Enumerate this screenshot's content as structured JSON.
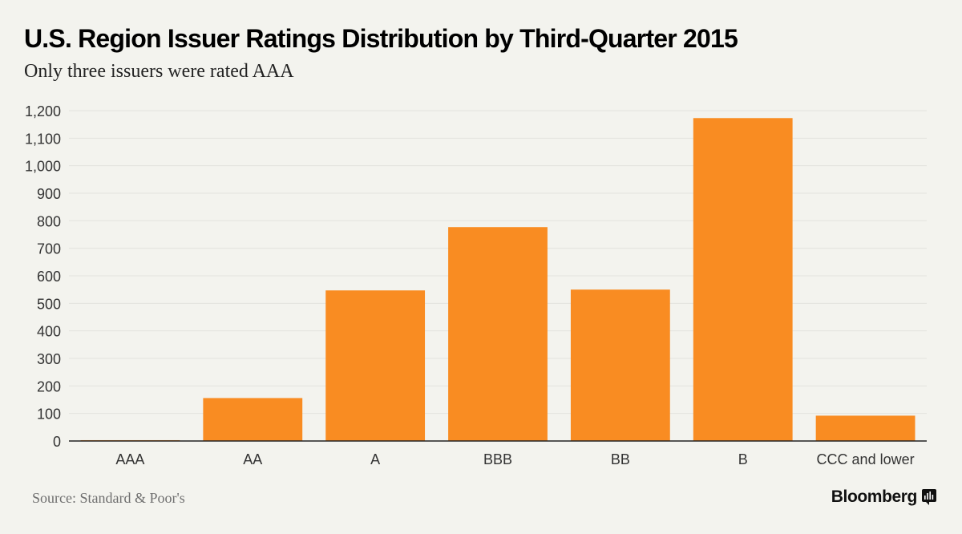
{
  "header": {
    "title": "U.S. Region Issuer Ratings Distribution by Third-Quarter 2015",
    "subtitle": "Only three issuers were rated AAA"
  },
  "footer": {
    "source": "Source: Standard & Poor's",
    "brand": "Bloomberg",
    "brand_icon": "bloomberg-terminal-icon"
  },
  "colors": {
    "bar": "#f98c22",
    "background": "#f3f3ee",
    "grid": "#e3e3de",
    "axis": "#222222"
  },
  "chart_data": {
    "type": "bar",
    "title": "U.S. Region Issuer Ratings Distribution by Third-Quarter 2015",
    "subtitle": "Only three issuers were rated AAA",
    "xlabel": "",
    "ylabel": "",
    "categories": [
      "AAA",
      "AA",
      "A",
      "BBB",
      "BB",
      "B",
      "CCC and lower"
    ],
    "values": [
      3,
      156,
      547,
      777,
      550,
      1173,
      92
    ],
    "ylim": [
      0,
      1200
    ],
    "yticks": [
      0,
      100,
      200,
      300,
      400,
      500,
      600,
      700,
      800,
      900,
      1000,
      1100,
      1200
    ],
    "ytick_labels": [
      "0",
      "100",
      "200",
      "300",
      "400",
      "500",
      "600",
      "700",
      "800",
      "900",
      "1,000",
      "1,100",
      "1,200"
    ],
    "grid": true,
    "legend": "none"
  }
}
